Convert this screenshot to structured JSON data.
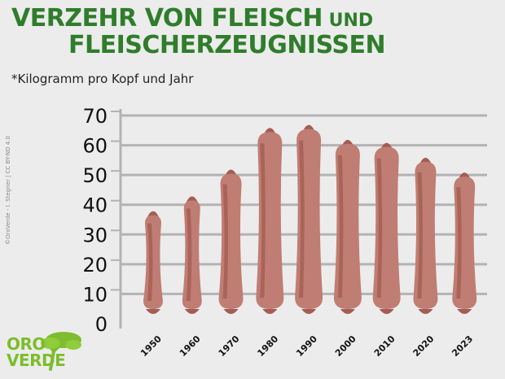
{
  "header": {
    "title_parts": [
      "Verzehr von ",
      "Fleisch",
      " und",
      "Fleischerzeugnissen"
    ],
    "subtitle": "*Kilogramm pro Kopf und Jahr"
  },
  "credit": "©OroVerde - I. Stegner | CC BY-ND 4.0",
  "logo": {
    "line1": "ORO",
    "line2": "VERDE"
  },
  "colors": {
    "title": "#2f7d2b",
    "sausage": "#c07d73",
    "sausage_dark": "#a45c53",
    "grid": "#b3b3b3",
    "logo": "#7dbd2e"
  },
  "chart_data": {
    "type": "bar",
    "bar_style": "sausage",
    "categories": [
      "1950",
      "1960",
      "1970",
      "1980",
      "1990",
      "2000",
      "2010",
      "2020",
      "2023"
    ],
    "values": [
      37,
      42,
      51,
      65,
      66,
      61,
      60,
      55,
      50
    ],
    "yticks": [
      0,
      10,
      20,
      30,
      40,
      50,
      60,
      70
    ],
    "ylim": [
      0,
      70
    ],
    "grid": true,
    "legend": false
  }
}
